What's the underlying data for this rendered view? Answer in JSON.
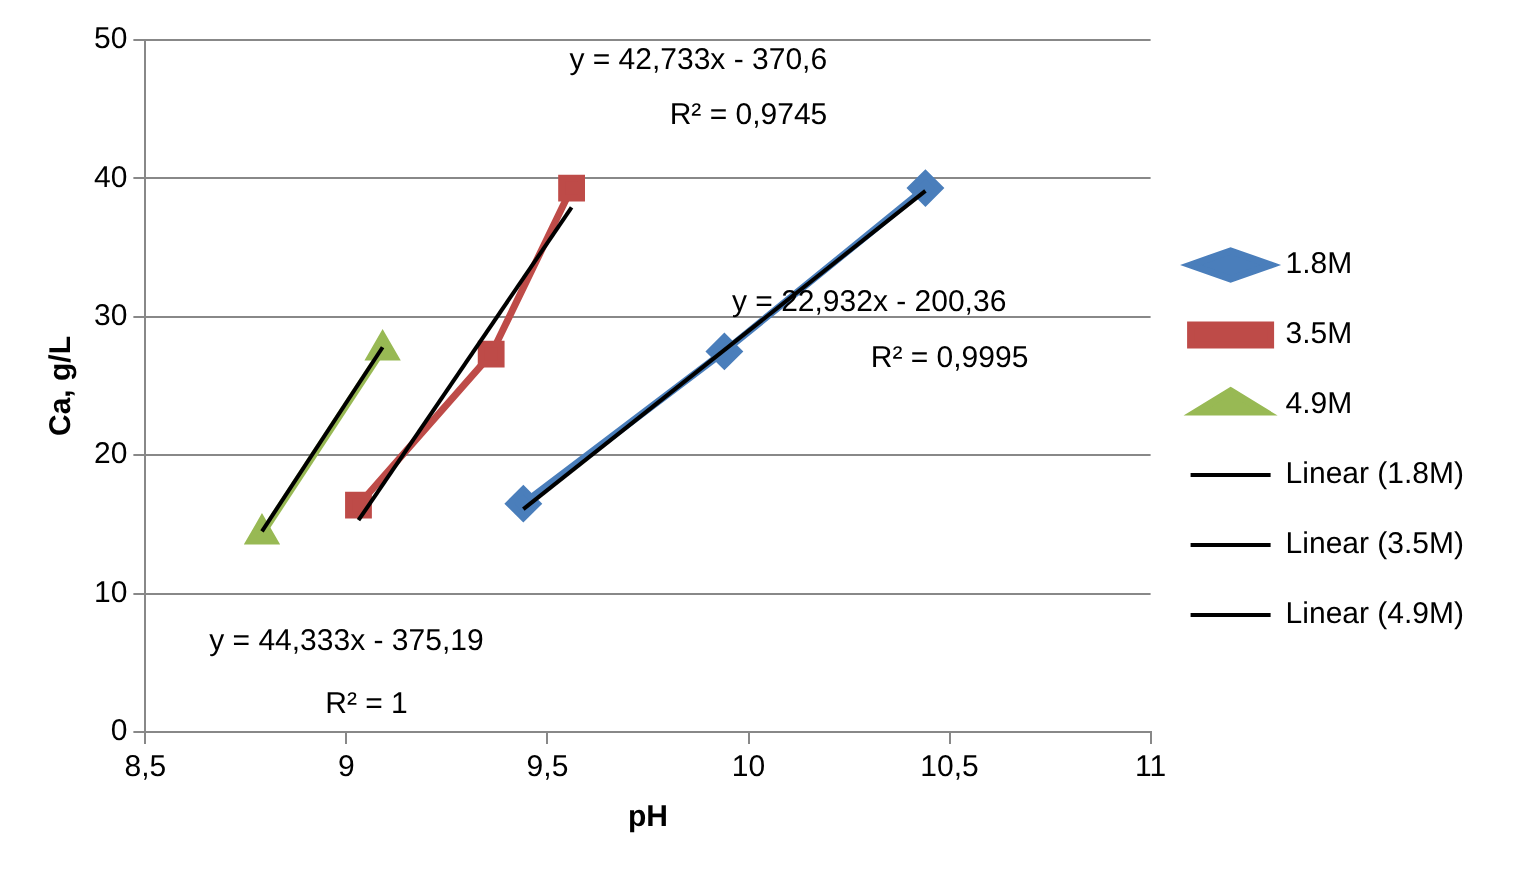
{
  "chart_data": {
    "type": "line",
    "xlabel": "pH",
    "ylabel": "Ca, g/L",
    "xlim": [
      8.5,
      11
    ],
    "xticks": [
      {
        "value": 8.5,
        "label": "8,5"
      },
      9,
      {
        "value": 9.5,
        "label": "9,5"
      },
      10,
      {
        "value": 10.5,
        "label": "10,5"
      },
      11
    ],
    "ylim": [
      0,
      50
    ],
    "yticks": [
      0,
      10,
      20,
      30,
      40,
      50
    ],
    "grid": "y",
    "legend": "right",
    "series": [
      {
        "name": "1.8M",
        "color": "#4a7ebb",
        "marker": "diamond",
        "x": [
          9.44,
          9.94,
          10.44
        ],
        "values": [
          16.5,
          27.5,
          39.3
        ]
      },
      {
        "name": "3.5M",
        "color": "#be4b48",
        "marker": "square",
        "x": [
          9.03,
          9.36,
          9.56
        ],
        "values": [
          16.4,
          27.3,
          39.3
        ]
      },
      {
        "name": "4.9M",
        "color": "#98b954",
        "marker": "triangle",
        "x": [
          8.79,
          9.09
        ],
        "values": [
          14.3,
          27.6
        ]
      },
      {
        "name": "Linear (1.8M)",
        "color": "#000000",
        "marker": "none",
        "x": [
          9.44,
          10.44
        ],
        "values": [
          16.1,
          39.1
        ]
      },
      {
        "name": "Linear (3.5M)",
        "color": "#000000",
        "marker": "none",
        "x": [
          9.03,
          9.56
        ],
        "values": [
          15.3,
          37.9
        ]
      },
      {
        "name": "Linear (4.9M)",
        "color": "#000000",
        "marker": "none",
        "x": [
          8.79,
          9.09
        ],
        "values": [
          14.5,
          27.8
        ]
      }
    ],
    "annotations": [
      "y = 42,733x - 370,6",
      "R² = 0,9745",
      "y = 22,932x - 200,36",
      "R² = 0,9995",
      "y = 44,333x - 375,19",
      "R² = 1"
    ]
  }
}
